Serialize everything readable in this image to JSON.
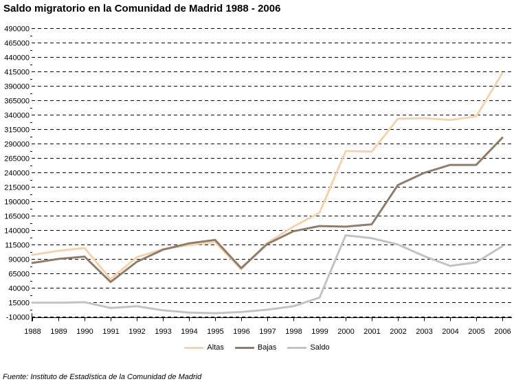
{
  "title": "Saldo migratorio en la Comunidad de Madrid 1988 - 2006",
  "source": "Fuente: Instituto de Estadística de la Comunidad de Madrid",
  "colors": {
    "axis": "#000000",
    "grid": "#000000",
    "background": "#ffffff",
    "altas": "#f4d3ac",
    "bajas": "#8f7c69",
    "saldo": "#c2c2c2"
  },
  "chart_data": {
    "type": "line",
    "title": "Saldo migratorio en la Comunidad de Madrid 1988 - 2006",
    "x": [
      1988,
      1989,
      1990,
      1991,
      1992,
      1993,
      1994,
      1995,
      1996,
      1997,
      1998,
      1999,
      2000,
      2001,
      2002,
      2003,
      2004,
      2005,
      2006
    ],
    "series": [
      {
        "name": "Altas",
        "color": "#f4d3ac",
        "values": [
          97000,
          104000,
          109000,
          55000,
          93000,
          107000,
          114000,
          119000,
          72000,
          118000,
          146000,
          170000,
          277000,
          276000,
          333000,
          334000,
          331000,
          337000,
          412000
        ]
      },
      {
        "name": "Bajas",
        "color": "#8f7c69",
        "values": [
          83000,
          90000,
          94000,
          50000,
          85000,
          106000,
          117000,
          123000,
          74000,
          116000,
          138000,
          147000,
          146000,
          150000,
          218000,
          239000,
          253000,
          253000,
          300000
        ]
      },
      {
        "name": "Saldo",
        "color": "#c2c2c2",
        "values": [
          14000,
          14000,
          15000,
          5000,
          8000,
          1000,
          -3000,
          -4000,
          -2000,
          2000,
          8000,
          23000,
          131000,
          126000,
          115000,
          95000,
          78000,
          84000,
          112000
        ]
      }
    ],
    "ylim": [
      -10000,
      490000
    ],
    "ytick_step": 25000,
    "ytick_labels": [
      "490000",
      "465000",
      "440000",
      "415000",
      "390000",
      "365000",
      "340000",
      "315000",
      "290000",
      "265000",
      "240000",
      "215000",
      "190000",
      "165000",
      "140000",
      "115000",
      "90000",
      "65000",
      "40000",
      "15000",
      "-10000"
    ],
    "grid": "dashed-horizontal",
    "legend_position": "bottom",
    "line_width": 3
  }
}
